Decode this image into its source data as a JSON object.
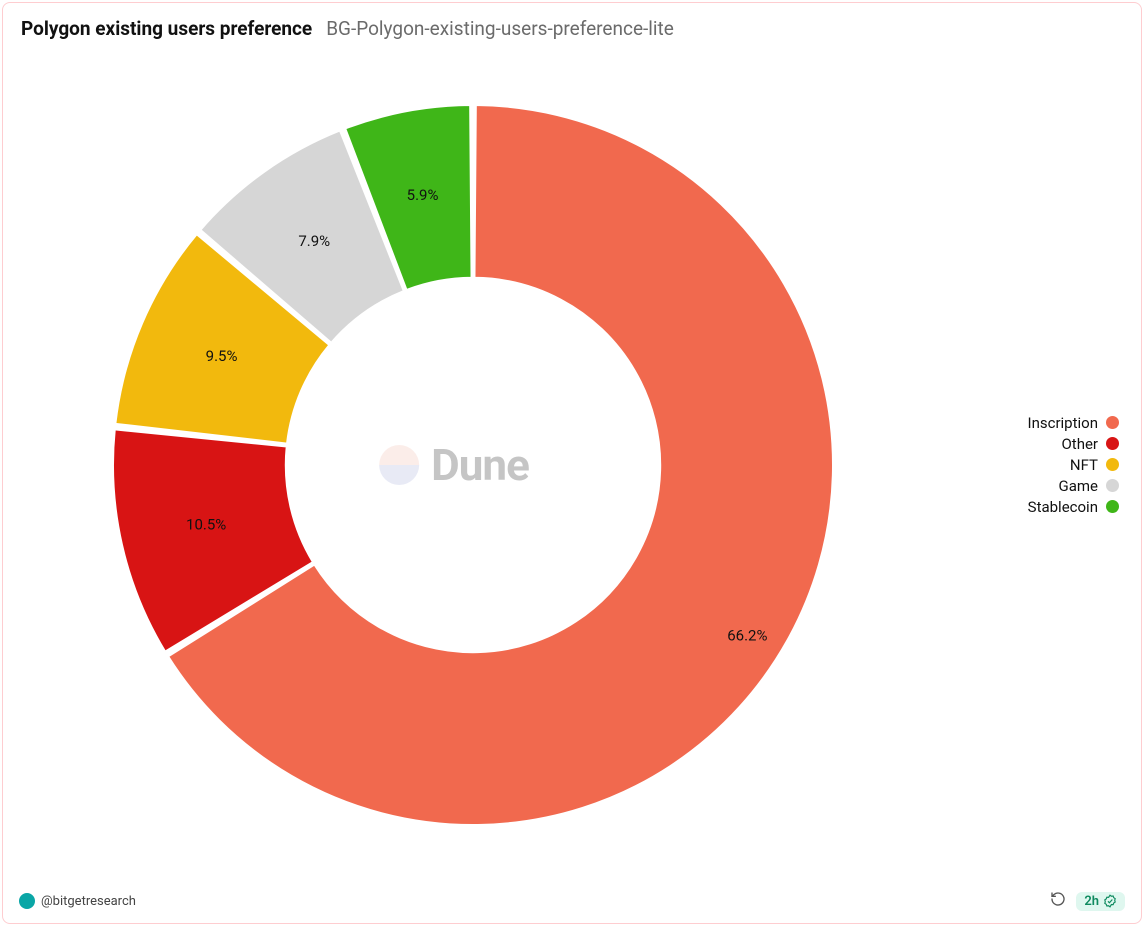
{
  "header": {
    "title": "Polygon existing users preference",
    "subtitle": "BG-Polygon-existing-users-preference-lite"
  },
  "chart": {
    "type": "donut",
    "inner_radius_ratio": 0.52,
    "outer_radius": 360,
    "gap_deg": 0.9,
    "background_color": "#ffffff",
    "stroke_color": "#ffffff",
    "label_fontsize": 15,
    "label_color": "#111111",
    "slices": [
      {
        "name": "Inscription",
        "value": 66.2,
        "label": "66.2%",
        "color": "#f1694e"
      },
      {
        "name": "Other",
        "value": 10.5,
        "label": "10.5%",
        "color": "#d81414"
      },
      {
        "name": "NFT",
        "value": 9.5,
        "label": "9.5%",
        "color": "#f2b90d"
      },
      {
        "name": "Game",
        "value": 7.9,
        "label": "7.9%",
        "color": "#d6d6d6"
      },
      {
        "name": "Stablecoin",
        "value": 5.9,
        "label": "5.9%",
        "color": "#3fb618"
      }
    ],
    "start_angle_deg": -90
  },
  "legend": {
    "items": [
      {
        "label": "Inscription",
        "color": "#f1694e"
      },
      {
        "label": "Other",
        "color": "#d81414"
      },
      {
        "label": "NFT",
        "color": "#f2b90d"
      },
      {
        "label": "Game",
        "color": "#d6d6d6"
      },
      {
        "label": "Stablecoin",
        "color": "#3fb618"
      }
    ],
    "fontsize": 15
  },
  "watermark": {
    "text": "Dune",
    "logo_top_color": "#f4c0b4",
    "logo_bottom_color": "#aeb6de"
  },
  "footer": {
    "author": "@bitgetresearch",
    "avatar_color": "#0aa6a6",
    "refresh_age": "2h",
    "badge_bg": "#dff7ef",
    "badge_fg": "#0f8a5f"
  }
}
